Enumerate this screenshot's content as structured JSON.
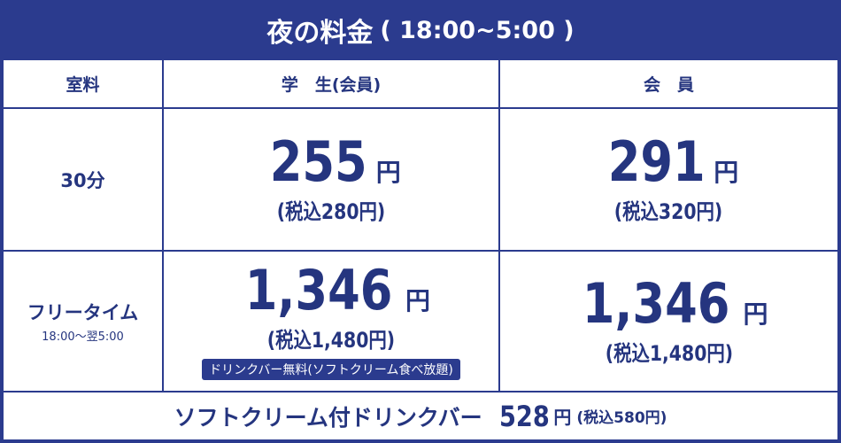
{
  "header": {
    "title": "夜の料金",
    "hours": "( 18:00~5:00 )"
  },
  "table": {
    "columns": [
      "室料",
      "学　生(会員)",
      "会　員"
    ],
    "rows": [
      {
        "label": "30分",
        "student": {
          "price": "255",
          "unit": "円",
          "tax": "(税込280円)"
        },
        "member": {
          "price": "291",
          "unit": "円",
          "tax": "(税込320円)"
        }
      },
      {
        "label": "フリータイム",
        "sublabel": "18:00〜翌5:00",
        "student": {
          "price": "1,346",
          "unit": "円",
          "tax": "(税込1,480円)",
          "note": "ドリンクバー無料(ソフトクリーム食べ放題)"
        },
        "member": {
          "price": "1,346",
          "unit": "円",
          "tax": "(税込1,480円)"
        }
      }
    ]
  },
  "footer": {
    "label": "ソフトクリーム付ドリンクバー",
    "price": "528",
    "unit": "円",
    "tax": "(税込580円)"
  }
}
